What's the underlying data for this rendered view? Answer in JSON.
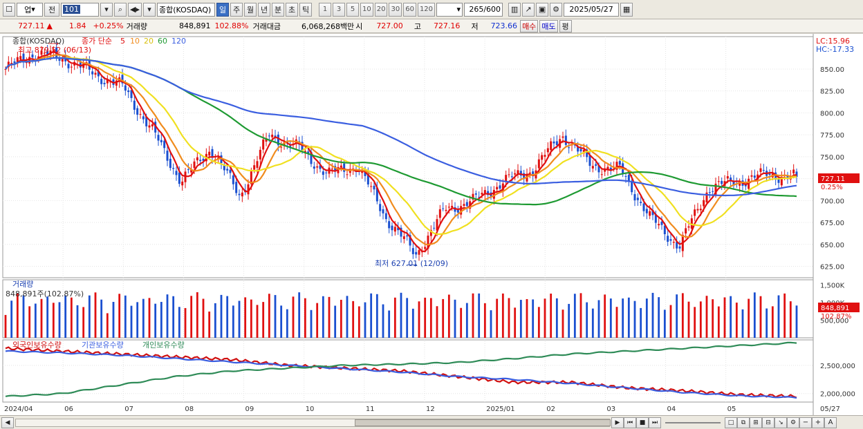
{
  "toolbar": {
    "code_type": "업",
    "prev_label": "전",
    "code": "101",
    "name": "종합(KOSDAQ)",
    "periods": [
      "일",
      "주",
      "월",
      "년",
      "분",
      "초",
      "틱"
    ],
    "active_period": "일",
    "minute_options": [
      "1",
      "3",
      "5",
      "10",
      "20",
      "30",
      "60",
      "120"
    ],
    "count": "265",
    "count_max": "/600",
    "date": "2025/05/27"
  },
  "quote": {
    "price": "727.11",
    "arrow": "▲",
    "change": "1.84",
    "change_pct": "+0.25%",
    "volume_label": "거래량",
    "volume": "848,891",
    "volume_pct": "102.88%",
    "amount_label": "거래대금",
    "amount": "6,068,268백만",
    "open_label": "시",
    "open": "727.00",
    "high_label": "고",
    "high": "727.16",
    "low_label": "저",
    "low": "723.66",
    "buy_label": "매수",
    "sell_label": "매도",
    "eval_label": "평"
  },
  "legend": {
    "name": "종합(KOSDAQ)",
    "ma_label": "종가 단순",
    "ma_periods": [
      "5",
      "10",
      "20",
      "60",
      "120"
    ],
    "high_note": "최고 879.52 (06/13)",
    "low_note": "최저 627.01 (12/09)",
    "lc": "LC:15.96",
    "hc": "HC:-17.33",
    "price_tag": "727.11",
    "pct_tag": "0.25%",
    "volume_title": "거래량",
    "volume_value": "848,891주(102.87%)",
    "vol_tag1": "848,891",
    "vol_tag2": "102.87%",
    "holdings": [
      "외국인보유수량",
      "기관보유수량",
      "개인보유수량"
    ]
  },
  "colors": {
    "up": "#e01010",
    "down": "#1a4fd0",
    "ma5": "#e01010",
    "ma10": "#f08c1e",
    "ma20": "#f0e020",
    "ma60": "#1e9a32",
    "ma120": "#3a5ee0",
    "foreign": "#d01010",
    "institution": "#3a5ee0",
    "individual": "#2e8b57"
  },
  "chart_data": [
    {
      "type": "candlestick",
      "title": "종합(KOSDAQ)",
      "x_labels": [
        "2024/04",
        "06",
        "07",
        "08",
        "09",
        "10",
        "11",
        "12",
        "2025/01",
        "02",
        "03",
        "04",
        "05",
        "05/27"
      ],
      "ylim": [
        612,
        887
      ],
      "y_ticks": [
        "850.00",
        "825.00",
        "800.00",
        "775.00",
        "750.00",
        "725.00",
        "700.00",
        "675.00",
        "650.00",
        "625.00"
      ],
      "close_path": [
        {
          "m": "2024/04",
          "v": 850
        },
        {
          "m": "05",
          "v": 868
        },
        {
          "m": "06",
          "v": 862
        },
        {
          "m": "07",
          "v": 845
        },
        {
          "m": "07b",
          "v": 830
        },
        {
          "m": "08",
          "v": 780
        },
        {
          "m": "08b",
          "v": 722
        },
        {
          "m": "09",
          "v": 760
        },
        {
          "m": "09b",
          "v": 705
        },
        {
          "m": "10",
          "v": 775
        },
        {
          "m": "10b",
          "v": 760
        },
        {
          "m": "11",
          "v": 730
        },
        {
          "m": "11b",
          "v": 740
        },
        {
          "m": "12",
          "v": 680
        },
        {
          "m": "12b",
          "v": 638
        },
        {
          "m": "12c",
          "v": 690
        },
        {
          "m": "2025/01",
          "v": 700
        },
        {
          "m": "01b",
          "v": 722
        },
        {
          "m": "02",
          "v": 735
        },
        {
          "m": "02b",
          "v": 775
        },
        {
          "m": "03",
          "v": 740
        },
        {
          "m": "03b",
          "v": 735
        },
        {
          "m": "04",
          "v": 680
        },
        {
          "m": "04b",
          "v": 648
        },
        {
          "m": "04c",
          "v": 715
        },
        {
          "m": "05",
          "v": 722
        },
        {
          "m": "05b",
          "v": 730
        },
        {
          "m": "05/27",
          "v": 727.11
        }
      ],
      "high": {
        "date": "06/13",
        "value": 879.52
      },
      "low": {
        "date": "12/09",
        "value": 627.01
      }
    },
    {
      "type": "bar",
      "title": "거래량",
      "y_ticks": [
        "1,500K",
        "1,000K",
        "500,000"
      ],
      "last": 848891
    },
    {
      "type": "line",
      "series": [
        {
          "name": "외국인보유수량",
          "values": [
            2800000,
            2750000,
            2700000,
            2650000,
            2600000,
            2500000,
            2450000,
            2400000,
            2300000,
            2200000,
            2200000,
            2100000,
            2050000,
            1980000,
            1950000
          ]
        },
        {
          "name": "기관보유수량",
          "values": [
            2750000,
            2720000,
            2680000,
            2620000,
            2560000,
            2500000,
            2440000,
            2380000,
            2300000,
            2250000,
            2180000,
            2100000,
            2020000,
            1960000,
            1930000
          ]
        },
        {
          "name": "개인보유수량",
          "values": [
            1950000,
            2000000,
            2150000,
            2300000,
            2400000,
            2450000,
            2500000,
            2520000,
            2550000,
            2620000,
            2700000,
            2750000,
            2800000,
            2850000,
            2900000
          ]
        }
      ],
      "y_ticks": [
        "2,500,000",
        "2,000,000"
      ]
    }
  ]
}
